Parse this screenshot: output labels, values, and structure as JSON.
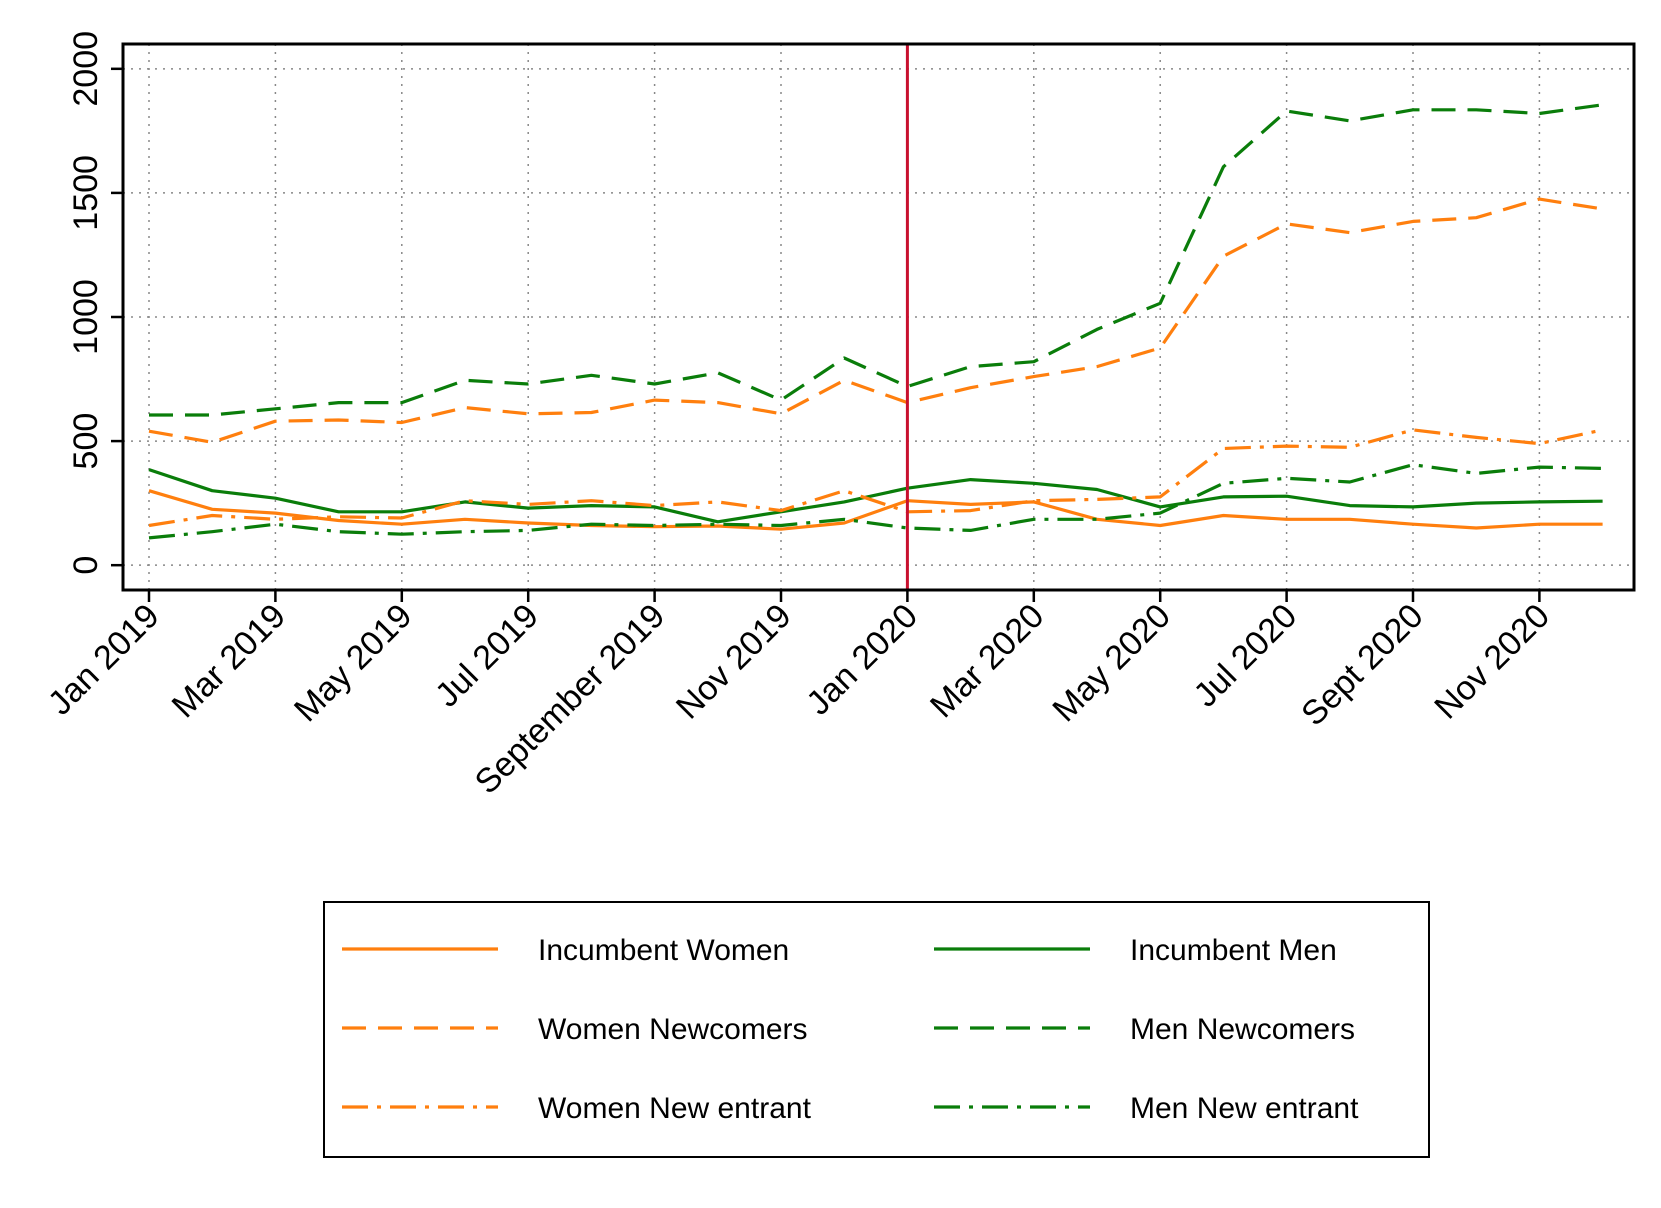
{
  "chart_data": {
    "type": "line",
    "title": "",
    "xlabel": "",
    "ylabel": "",
    "ylim": [
      -100,
      2100
    ],
    "yticks": [
      0,
      500,
      1000,
      1500,
      2000
    ],
    "grid": true,
    "legend_position": "bottom",
    "months": [
      "Jan 2019",
      "Feb 2019",
      "Mar 2019",
      "Apr 2019",
      "May 2019",
      "Jun 2019",
      "Jul 2019",
      "Aug 2019",
      "Sep 2019",
      "Oct 2019",
      "Nov 2019",
      "Dec 2019",
      "Jan 2020",
      "Feb 2020",
      "Mar 2020",
      "Apr 2020",
      "May 2020",
      "Jun 2020",
      "Jul 2020",
      "Aug 2020",
      "Sep 2020",
      "Oct 2020",
      "Nov 2020",
      "Dec 2020"
    ],
    "xtick_labels": [
      {
        "index": 0,
        "label": "Jan 2019"
      },
      {
        "index": 2,
        "label": "Mar 2019"
      },
      {
        "index": 4,
        "label": "May 2019"
      },
      {
        "index": 6,
        "label": "Jul 2019"
      },
      {
        "index": 8,
        "label": "September 2019"
      },
      {
        "index": 10,
        "label": "Nov 2019"
      },
      {
        "index": 12,
        "label": "Jan 2020"
      },
      {
        "index": 14,
        "label": "Mar 2020"
      },
      {
        "index": 16,
        "label": "May 2020"
      },
      {
        "index": 18,
        "label": "Jul 2020"
      },
      {
        "index": 20,
        "label": "Sept 2020"
      },
      {
        "index": 22,
        "label": "Nov 2020"
      }
    ],
    "vline": {
      "index": 12,
      "color": "#c8102e"
    },
    "series": [
      {
        "name": "Incumbent Women",
        "color": "#ff7f0e",
        "dash": "solid",
        "values": [
          300,
          225,
          210,
          180,
          165,
          185,
          170,
          160,
          155,
          158,
          145,
          170,
          260,
          245,
          255,
          185,
          160,
          200,
          185,
          185,
          165,
          150,
          165,
          165
        ]
      },
      {
        "name": "Incumbent Men",
        "color": "#0a7d0a",
        "dash": "solid",
        "values": [
          385,
          300,
          270,
          215,
          215,
          255,
          230,
          240,
          235,
          175,
          215,
          255,
          310,
          345,
          330,
          305,
          235,
          275,
          278,
          240,
          235,
          250,
          255,
          258
        ]
      },
      {
        "name": "Women Newcomers",
        "color": "#ff7f0e",
        "dash": "dashed",
        "values": [
          540,
          495,
          580,
          585,
          575,
          635,
          610,
          615,
          665,
          655,
          610,
          745,
          655,
          715,
          760,
          800,
          875,
          1245,
          1375,
          1340,
          1385,
          1400,
          1475,
          1435
        ]
      },
      {
        "name": "Men Newcomers",
        "color": "#0a7d0a",
        "dash": "dashed",
        "values": [
          605,
          605,
          630,
          655,
          655,
          745,
          730,
          765,
          730,
          775,
          665,
          835,
          720,
          800,
          820,
          950,
          1055,
          1605,
          1830,
          1790,
          1835,
          1835,
          1820,
          1855
        ]
      },
      {
        "name": "Women New entrant",
        "color": "#ff7f0e",
        "dash": "dashdot",
        "values": [
          160,
          200,
          185,
          195,
          190,
          260,
          245,
          260,
          240,
          255,
          220,
          300,
          215,
          220,
          260,
          265,
          275,
          470,
          480,
          475,
          545,
          515,
          490,
          545
        ]
      },
      {
        "name": "Men New entrant",
        "color": "#0a7d0a",
        "dash": "dashdot",
        "values": [
          110,
          135,
          165,
          135,
          125,
          135,
          140,
          165,
          160,
          165,
          160,
          185,
          150,
          140,
          185,
          185,
          210,
          330,
          350,
          335,
          405,
          370,
          395,
          390
        ]
      }
    ]
  }
}
